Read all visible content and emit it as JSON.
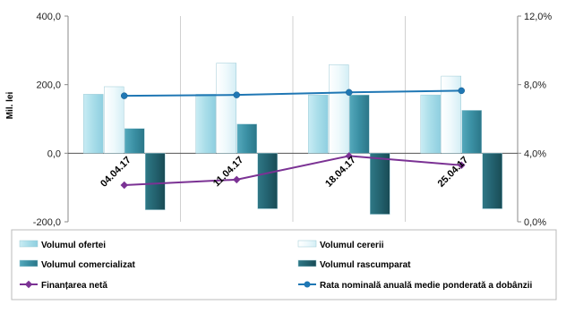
{
  "chart_data": {
    "type": "bar",
    "categories": [
      "04.04.17",
      "11.04.17",
      "18.04.17",
      "25.04.17"
    ],
    "ylabel": "Mil. lei",
    "ylim": [
      -200,
      400
    ],
    "yticks": [
      "-200,0",
      "0,0",
      "200,0",
      "400,0"
    ],
    "y2lim": [
      0,
      12
    ],
    "y2ticks": [
      "0,0%",
      "4,0%",
      "8,0%",
      "12,0%"
    ],
    "grid": "vertical",
    "legend_position": "bottom",
    "series": [
      {
        "name": "Volumul ofertei",
        "type": "bar",
        "axis": "left",
        "color": "#a8dde9",
        "values": [
          172,
          172,
          170,
          170
        ]
      },
      {
        "name": "Volumul cererii",
        "type": "bar",
        "axis": "left",
        "color": "#e8f7fb",
        "values": [
          194,
          263,
          258,
          225
        ]
      },
      {
        "name": "Volumul comercializat",
        "type": "bar",
        "axis": "left",
        "color": "#3a8fa3",
        "values": [
          72,
          85,
          170,
          125
        ]
      },
      {
        "name": "Volumul rascumparat",
        "type": "bar",
        "axis": "left",
        "color": "#23626f",
        "values": [
          -165,
          -162,
          -178,
          -162
        ]
      },
      {
        "name": "Finanțarea netă",
        "type": "line",
        "axis": "left",
        "color": "#7b3294",
        "values": [
          -93,
          -77,
          -8,
          -35
        ]
      },
      {
        "name": "Rata nominală anuală medie ponderată a dobânzii",
        "type": "line",
        "axis": "right",
        "color": "#1f77b4",
        "values": [
          7.35,
          7.4,
          7.55,
          7.65
        ]
      }
    ]
  }
}
